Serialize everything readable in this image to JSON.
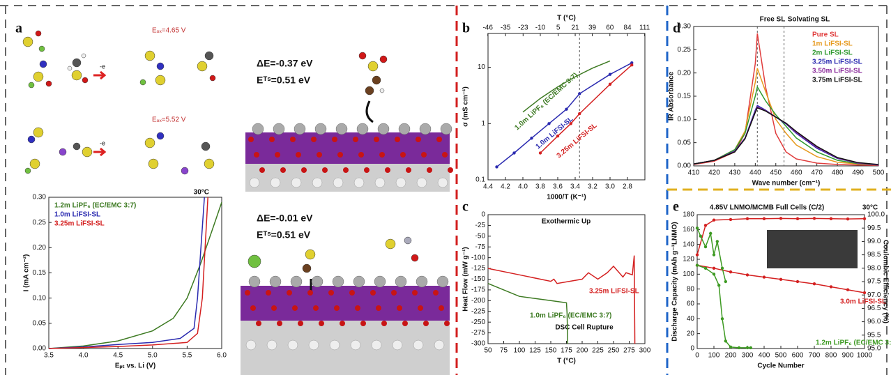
{
  "figure": {
    "panel_labels": [
      "a",
      "b",
      "c",
      "d",
      "e"
    ]
  },
  "structures": {
    "oxidation": [
      {
        "label": "Eₒₓ=4.65 V",
        "step": "-e"
      },
      {
        "label": "Eₒₓ=5.52 V",
        "step": "-e"
      }
    ],
    "adsorption": [
      {
        "energy": "ΔE=-0.37 eV",
        "barrier": "Eᵀˢ=0.51 eV"
      },
      {
        "energy": "ΔE=-0.01 eV",
        "barrier": "Eᵀˢ=0.51 eV"
      }
    ]
  },
  "chart_data": [
    {
      "type": "line",
      "title": "30°C",
      "xlabel": "Eₚₜ vs. Li (V)",
      "ylabel": "I (mA cm⁻²)",
      "xlim": [
        3.5,
        6.0
      ],
      "xticks": [
        3.5,
        {
          "value": 4,
          "label": "4.0"
        },
        4.5,
        {
          "value": 5,
          "label": "5.0"
        },
        5.5,
        {
          "value": 6,
          "label": "6.0"
        }
      ],
      "ylim": [
        0,
        0.3
      ],
      "yticks": [
        {
          "value": 0,
          "label": "0.00"
        },
        0.05,
        {
          "value": 0.1,
          "label": "0.10"
        },
        0.15,
        {
          "value": 0.2,
          "label": "0.20"
        },
        0.25,
        {
          "value": 0.3,
          "label": "0.30"
        }
      ],
      "legend": "upper left",
      "series": [
        {
          "name": "1.2m LiPF₆ (EC/EMC 3:7)",
          "color": "#3d7a22",
          "x": [
            3.5,
            4.0,
            4.5,
            5.0,
            5.3,
            5.5,
            5.7,
            5.9,
            6.0
          ],
          "values": [
            0,
            0.005,
            0.015,
            0.035,
            0.06,
            0.1,
            0.17,
            0.25,
            0.29
          ]
        },
        {
          "name": "1.0m LiFSI-SL",
          "color": "#2a2ab0",
          "x": [
            3.5,
            4.0,
            4.5,
            5.0,
            5.4,
            5.6,
            5.65,
            5.7,
            5.75
          ],
          "values": [
            0,
            0.003,
            0.008,
            0.012,
            0.02,
            0.04,
            0.1,
            0.2,
            0.3
          ]
        },
        {
          "name": "3.25m LiFSI-SL",
          "color": "#d42020",
          "x": [
            3.5,
            4.0,
            4.5,
            5.0,
            5.5,
            5.65,
            5.72,
            5.76,
            5.8
          ],
          "values": [
            0,
            0.002,
            0.004,
            0.007,
            0.012,
            0.03,
            0.1,
            0.2,
            0.3
          ]
        }
      ]
    },
    {
      "type": "line",
      "ylog": true,
      "xlabel": "1000/T (K⁻¹)",
      "ylabel": "σ (mS cm⁻¹)",
      "x2label": "T (°C)",
      "x2ticks": [
        -46,
        -35,
        -23,
        -10,
        5,
        21,
        39,
        60,
        84,
        111
      ],
      "xlim": [
        4.4,
        2.6
      ],
      "xticks": [
        4.4,
        4.2,
        {
          "value": 4,
          "label": "4.0"
        },
        3.8,
        3.6,
        3.4,
        3.2,
        {
          "value": 3,
          "label": "3.0"
        },
        2.8
      ],
      "ylim": [
        0.1,
        40
      ],
      "yticks": [
        0.1,
        1,
        10
      ],
      "vlines": [
        3.35
      ],
      "series": [
        {
          "name": "1.0m LiPF₆ (EC/EMC 3:7)",
          "color": "#3d7a22",
          "x": [
            4.0,
            3.8,
            3.6,
            3.4,
            3.2,
            3.0
          ],
          "values": [
            1.6,
            2.8,
            4.5,
            6.8,
            9.7,
            13
          ]
        },
        {
          "name": "1.0m LiFSI-SL",
          "color": "#2a2ab0",
          "marker": "circle",
          "x": [
            4.3,
            4.1,
            3.9,
            3.7,
            3.5,
            3.35,
            3.0,
            2.75
          ],
          "values": [
            0.17,
            0.3,
            0.55,
            1.0,
            1.8,
            3.4,
            7.5,
            12
          ]
        },
        {
          "name": "3.25m LiFSI-SL",
          "color": "#d42020",
          "marker": "circle",
          "x": [
            3.8,
            3.6,
            3.45,
            3.35,
            3.0,
            2.75
          ],
          "values": [
            0.3,
            0.6,
            1.0,
            1.5,
            5.0,
            11
          ]
        }
      ]
    },
    {
      "type": "line",
      "title": "Exothermic Up",
      "annotations": [
        "DSC Cell Rupture"
      ],
      "xlabel": "T (°C)",
      "ylabel": "Heat Flow (mW g⁻¹)",
      "xlim": [
        50,
        300
      ],
      "xticks": [
        50,
        75,
        100,
        125,
        150,
        175,
        200,
        225,
        250,
        275,
        300
      ],
      "ylim": [
        -300,
        0
      ],
      "yticks": [
        0,
        -25,
        -50,
        -75,
        -100,
        -125,
        -150,
        -175,
        -200,
        -225,
        -250,
        -275,
        -300
      ],
      "series": [
        {
          "name": "3.25m LiFSI-SL",
          "color": "#d42020",
          "x": [
            50,
            100,
            150,
            155,
            160,
            200,
            210,
            225,
            240,
            250,
            265,
            270,
            280,
            283,
            284
          ],
          "values": [
            -125,
            -140,
            -155,
            -150,
            -160,
            -150,
            -135,
            -150,
            -135,
            -120,
            -145,
            -135,
            -140,
            -95,
            -300
          ]
        },
        {
          "name": "1.0m LiPF₆ (EC/EMC 3:7)",
          "color": "#3d7a22",
          "x": [
            50,
            100,
            150,
            175,
            176,
            177
          ],
          "values": [
            -160,
            -190,
            -200,
            -205,
            -230,
            -300
          ]
        }
      ]
    },
    {
      "type": "line",
      "annotations": [
        "Free SL",
        "Solvating SL"
      ],
      "vlines": [
        441,
        454
      ],
      "xlabel": "Wave number (cm⁻¹)",
      "ylabel": "IR Absorbance",
      "xlim": [
        410,
        500
      ],
      "xticks": [
        410,
        420,
        430,
        440,
        450,
        460,
        470,
        480,
        490,
        500
      ],
      "ylim": [
        0,
        0.3
      ],
      "yticks": [
        {
          "value": 0,
          "label": "0.00"
        },
        0.05,
        {
          "value": 0.1,
          "label": "0.10"
        },
        0.15,
        {
          "value": 0.2,
          "label": "0.20"
        },
        0.25,
        {
          "value": 0.3,
          "label": "0.30"
        }
      ],
      "legend": "upper right",
      "x": [
        410,
        420,
        430,
        435,
        440,
        441,
        445,
        450,
        455,
        460,
        470,
        480,
        490,
        500
      ],
      "series": [
        {
          "name": "Pure SL",
          "color": "#e03c3c",
          "values": [
            0.003,
            0.01,
            0.03,
            0.07,
            0.22,
            0.285,
            0.17,
            0.07,
            0.03,
            0.015,
            0.006,
            0.003,
            0.002,
            0.001
          ]
        },
        {
          "name": "1m LiFSI-SL",
          "color": "#e69a1e",
          "values": [
            0.004,
            0.012,
            0.035,
            0.075,
            0.18,
            0.21,
            0.16,
            0.1,
            0.07,
            0.045,
            0.02,
            0.008,
            0.004,
            0.002
          ]
        },
        {
          "name": "2m LiFSI-SL",
          "color": "#2f9a2f",
          "values": [
            0.004,
            0.012,
            0.035,
            0.07,
            0.15,
            0.17,
            0.14,
            0.11,
            0.085,
            0.06,
            0.03,
            0.012,
            0.005,
            0.002
          ]
        },
        {
          "name": "3.25m LiFSI-SL",
          "color": "#2a2ab0",
          "values": [
            0.004,
            0.012,
            0.032,
            0.06,
            0.12,
            0.13,
            0.12,
            0.105,
            0.09,
            0.07,
            0.038,
            0.016,
            0.006,
            0.002
          ]
        },
        {
          "name": "3.50m LiFSI-SL",
          "color": "#8a2a9a",
          "values": [
            0.004,
            0.012,
            0.031,
            0.059,
            0.117,
            0.127,
            0.119,
            0.105,
            0.091,
            0.072,
            0.04,
            0.017,
            0.006,
            0.002
          ]
        },
        {
          "name": "3.75m LiFSI-SL",
          "color": "#111111",
          "values": [
            0.004,
            0.012,
            0.03,
            0.058,
            0.115,
            0.125,
            0.118,
            0.105,
            0.092,
            0.074,
            0.042,
            0.018,
            0.007,
            0.003
          ]
        }
      ]
    },
    {
      "type": "line",
      "title": "4.85V LNMO/MCMB Full Cells (C/2)",
      "annotations": [
        "30°C"
      ],
      "xlabel": "Cycle Number",
      "ylabel": "Discharge Capacity (mAh g⁻¹LNMO)",
      "y2label": "Coulombic Efficiency (%)",
      "xlim": [
        0,
        1000
      ],
      "xticks": [
        0,
        100,
        200,
        300,
        400,
        500,
        600,
        700,
        800,
        900,
        1000
      ],
      "ylim": [
        0,
        180
      ],
      "yticks": [
        0,
        20,
        40,
        60,
        80,
        100,
        120,
        140,
        160,
        180
      ],
      "y2lim": [
        95,
        100
      ],
      "y2ticks": [
        {
          "value": 95,
          "label": "95.0"
        },
        95.5,
        {
          "value": 96,
          "label": "96.0"
        },
        96.5,
        {
          "value": 97,
          "label": "97.0"
        },
        97.5,
        {
          "value": 98,
          "label": "98.0"
        },
        98.5,
        {
          "value": 99,
          "label": "99.0"
        },
        99.5,
        {
          "value": 100,
          "label": "100.0"
        }
      ],
      "series": [
        {
          "name": "3.0m LiFSI-SL",
          "color": "#d42020",
          "marker": "circle",
          "x": [
            0,
            100,
            200,
            300,
            400,
            500,
            600,
            700,
            800,
            900,
            1000
          ],
          "values": [
            112,
            108,
            103,
            99,
            96,
            93,
            90,
            87,
            83,
            79,
            75
          ]
        },
        {
          "name": "1.2m LiPF₆ (EC/EMC 3:7)",
          "color": "#3d9a22",
          "marker": "circle",
          "x": [
            0,
            50,
            100,
            130,
            150,
            170,
            200,
            250,
            300,
            320
          ],
          "values": [
            112,
            108,
            100,
            85,
            40,
            10,
            2,
            1,
            1,
            1
          ]
        },
        {
          "color": "#d42020",
          "marker": "circle",
          "axis": "y2",
          "x": [
            0,
            50,
            100,
            200,
            300,
            400,
            500,
            600,
            700,
            800,
            900,
            1000
          ],
          "values": [
            98.5,
            99.6,
            99.8,
            99.82,
            99.85,
            99.85,
            99.86,
            99.85,
            99.86,
            99.85,
            99.84,
            99.85
          ]
        },
        {
          "color": "#3d9a22",
          "marker": "circle",
          "axis": "y2",
          "x": [
            0,
            20,
            50,
            80,
            100,
            120,
            150,
            170
          ],
          "values": [
            99.5,
            99.2,
            98.8,
            99.3,
            98.5,
            99.0,
            98.0,
            97.5
          ]
        }
      ]
    }
  ]
}
